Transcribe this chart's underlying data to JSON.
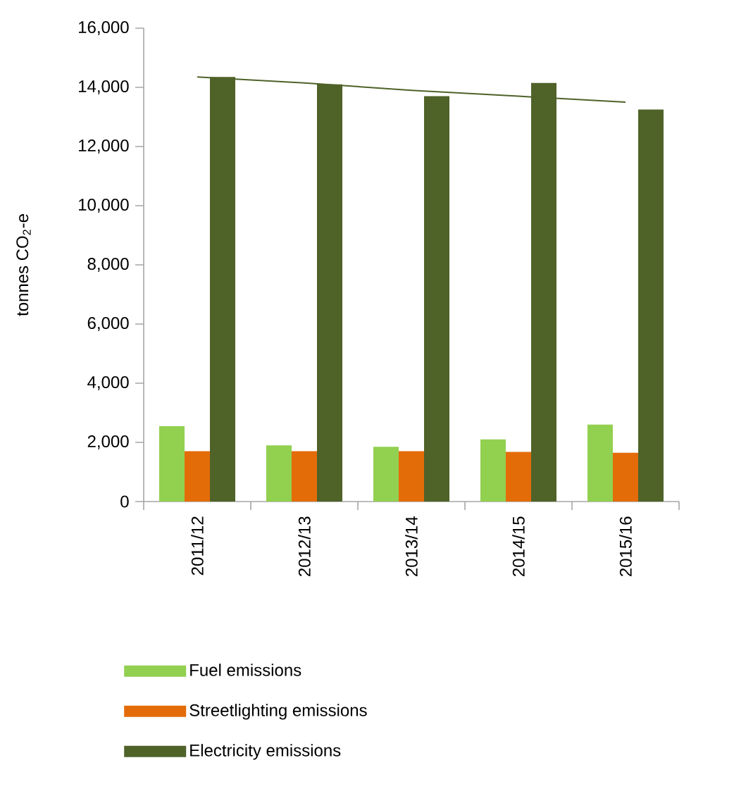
{
  "chart_data": {
    "type": "bar",
    "ylabel": "tonnes CO$_{2}$-e",
    "categories": [
      "2011/12",
      "2012/13",
      "2013/14",
      "2014/15",
      "2015/16"
    ],
    "series": [
      {
        "name": "Fuel emissions",
        "color": "#92d050",
        "values": [
          2550,
          1900,
          1850,
          2100,
          2600
        ]
      },
      {
        "name": "Streetlighting emissions",
        "color": "#e36c09",
        "values": [
          1700,
          1700,
          1700,
          1680,
          1650
        ]
      },
      {
        "name": "Electricity emissions",
        "color": "#4f6228",
        "values": [
          14350,
          14100,
          13700,
          14150,
          13250
        ]
      },
      {
        "type": "line",
        "color": "#4f6228",
        "values": [
          14350,
          14150,
          13900,
          13700,
          13500
        ]
      }
    ],
    "ylim": [
      0,
      16000
    ],
    "yticks": [
      {
        "value": 0,
        "label": "0"
      },
      {
        "value": 2000,
        "label": "2,000"
      },
      {
        "value": 4000,
        "label": "4,000"
      },
      {
        "value": 6000,
        "label": "6,000"
      },
      {
        "value": 8000,
        "label": "8,000"
      },
      {
        "value": 10000,
        "label": "10,000"
      },
      {
        "value": 12000,
        "label": "12,000"
      },
      {
        "value": 14000,
        "label": "14,000"
      },
      {
        "value": 16000,
        "label": "16,000"
      }
    ],
    "legend": "bottom"
  }
}
